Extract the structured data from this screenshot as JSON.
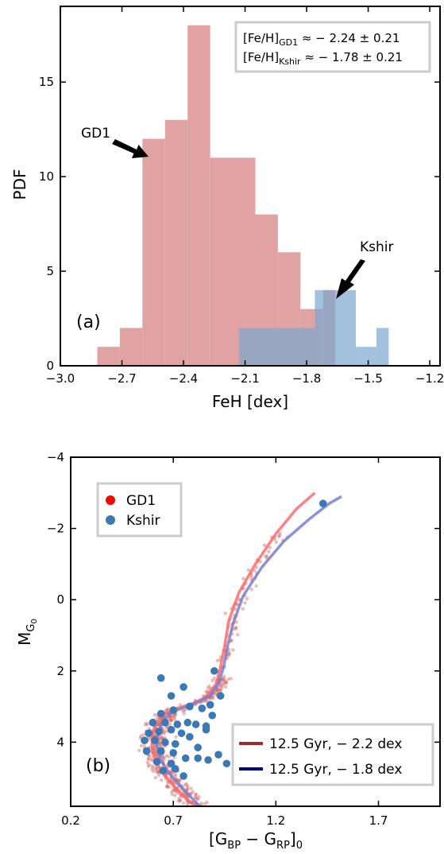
{
  "chart_data": [
    {
      "type": "bar",
      "panel_label": "(a)",
      "xlabel": "FeH [dex]",
      "ylabel": "PDF",
      "xlim": [
        -3.0,
        -1.15
      ],
      "ylim": [
        0,
        19
      ],
      "xticks": [
        -3.0,
        -2.7,
        -2.4,
        -2.1,
        -1.8,
        -1.5,
        -1.2
      ],
      "xtick_labels": [
        "−3.0",
        "−2.7",
        "−2.4",
        "−2.1",
        "−1.8",
        "−1.5",
        "−1.2"
      ],
      "yticks": [
        0,
        5,
        10,
        15
      ],
      "ytick_labels": [
        "0",
        "5",
        "10",
        "15"
      ],
      "series": [
        {
          "name": "GD1",
          "color": "#e0a2a2",
          "bins": [
            {
              "x0": -2.82,
              "x1": -2.71,
              "v": 1
            },
            {
              "x0": -2.71,
              "x1": -2.6,
              "v": 2
            },
            {
              "x0": -2.6,
              "x1": -2.49,
              "v": 12
            },
            {
              "x0": -2.49,
              "x1": -2.38,
              "v": 13
            },
            {
              "x0": -2.38,
              "x1": -2.27,
              "v": 18
            },
            {
              "x0": -2.27,
              "x1": -2.16,
              "v": 11
            },
            {
              "x0": -2.16,
              "x1": -2.05,
              "v": 11
            },
            {
              "x0": -2.05,
              "x1": -1.94,
              "v": 8
            },
            {
              "x0": -1.94,
              "x1": -1.83,
              "v": 6
            },
            {
              "x0": -1.83,
              "x1": -1.72,
              "v": 3
            },
            {
              "x0": -1.72,
              "x1": -1.66,
              "v": 4
            }
          ]
        },
        {
          "name": "Kshir",
          "color": "#7ea9d0",
          "bins": [
            {
              "x0": -2.13,
              "x1": -1.88,
              "v": 2
            },
            {
              "x0": -1.88,
              "x1": -1.76,
              "v": 2
            },
            {
              "x0": -1.76,
              "x1": -1.66,
              "v": 4
            },
            {
              "x0": -1.66,
              "x1": -1.56,
              "v": 4
            },
            {
              "x0": -1.56,
              "x1": -1.51,
              "v": 1
            },
            {
              "x0": -1.51,
              "x1": -1.46,
              "v": 1
            },
            {
              "x0": -1.46,
              "x1": -1.4,
              "v": 2
            }
          ]
        }
      ],
      "annotations": [
        {
          "text": "GD1",
          "target_x": -2.52,
          "target_y": 11.2
        },
        {
          "text": "Kshir",
          "target_x": -1.63,
          "target_y": 3.5
        }
      ],
      "textbox": {
        "line1_main": "[Fe/H]",
        "line1_sub": "GD1",
        "line1_value": " ≈ − 2.24 ± 0.21",
        "line2_main": "[Fe/H]",
        "line2_sub": "Kshir",
        "line2_value": " ≈ − 1.78 ± 0.21"
      }
    },
    {
      "type": "scatter",
      "panel_label": "(b)",
      "xlabel": "[G_BP − G_RP]_0",
      "ylabel": "M_G0",
      "xlim": [
        0.2,
        2.0
      ],
      "ylim": [
        5.8,
        -4.0
      ],
      "y_inverted": true,
      "xticks": [
        0.2,
        0.7,
        1.2,
        1.7
      ],
      "xtick_labels": [
        "0.2",
        "0.7",
        "1.2",
        "1.7"
      ],
      "yticks": [
        -4,
        -2,
        0,
        2,
        4
      ],
      "ytick_labels": [
        "−4",
        "−2",
        "0",
        "2",
        "4"
      ],
      "legend_scatter": {
        "location": "upper left",
        "entries": [
          {
            "name": "GD1",
            "color": "#ff0000"
          },
          {
            "name": "Kshir",
            "color": "#3c78b4"
          }
        ]
      },
      "legend_lines": {
        "location": "lower right",
        "entries": [
          {
            "name": "12.5 Gyr,  − 2.2 dex",
            "color": "#a32a2a"
          },
          {
            "name": "12.5 Gyr,  − 1.8 dex",
            "color": "#00008b"
          }
        ]
      },
      "kshir_points": [
        [
          0.64,
          2.2
        ],
        [
          0.69,
          2.7
        ],
        [
          0.75,
          2.45
        ],
        [
          0.9,
          2.0
        ],
        [
          0.93,
          2.7
        ],
        [
          0.88,
          2.95
        ],
        [
          0.64,
          3.2
        ],
        [
          0.7,
          3.1
        ],
        [
          0.78,
          3.0
        ],
        [
          0.84,
          3.05
        ],
        [
          0.89,
          3.25
        ],
        [
          0.6,
          3.45
        ],
        [
          0.66,
          3.45
        ],
        [
          0.72,
          3.5
        ],
        [
          0.77,
          3.45
        ],
        [
          0.81,
          3.5
        ],
        [
          0.86,
          3.55
        ],
        [
          0.58,
          3.75
        ],
        [
          0.63,
          3.7
        ],
        [
          0.69,
          3.65
        ],
        [
          0.74,
          3.75
        ],
        [
          0.78,
          3.85
        ],
        [
          0.86,
          3.65
        ],
        [
          0.61,
          3.95
        ],
        [
          0.66,
          4.0
        ],
        [
          0.71,
          4.05
        ],
        [
          0.82,
          4.15
        ],
        [
          0.56,
          3.95
        ],
        [
          0.57,
          4.25
        ],
        [
          0.64,
          4.25
        ],
        [
          0.7,
          4.3
        ],
        [
          0.76,
          4.45
        ],
        [
          0.62,
          4.55
        ],
        [
          0.69,
          4.6
        ],
        [
          0.82,
          4.45
        ],
        [
          0.87,
          4.5
        ],
        [
          0.92,
          4.35
        ],
        [
          0.96,
          4.6
        ],
        [
          0.65,
          4.8
        ],
        [
          0.71,
          4.75
        ],
        [
          0.75,
          4.95
        ],
        [
          1.43,
          -2.7
        ]
      ],
      "isochrones": [
        {
          "name": "12.5 Gyr,  − 2.2 dex",
          "color": "#ff6b6b",
          "x": [
            0.805,
            0.74,
            0.69,
            0.64,
            0.61,
            0.595,
            0.6,
            0.62,
            0.66,
            0.72,
            0.8,
            0.87,
            0.91,
            0.93,
            0.95,
            0.97,
            1.02,
            1.1,
            1.2,
            1.3,
            1.39
          ],
          "y": [
            5.8,
            5.45,
            5.15,
            4.8,
            4.45,
            4.1,
            3.75,
            3.45,
            3.2,
            3.05,
            2.9,
            2.7,
            2.35,
            1.9,
            1.3,
            0.6,
            -0.2,
            -1.0,
            -1.85,
            -2.55,
            -3.0
          ]
        },
        {
          "name": "12.5 Gyr,  − 1.8 dex",
          "color": "#7a7fcf",
          "x": [
            0.83,
            0.77,
            0.72,
            0.67,
            0.635,
            0.62,
            0.625,
            0.645,
            0.68,
            0.74,
            0.81,
            0.88,
            0.92,
            0.945,
            0.965,
            0.99,
            1.04,
            1.13,
            1.24,
            1.36,
            1.46,
            1.52
          ],
          "y": [
            5.8,
            5.45,
            5.15,
            4.8,
            4.45,
            4.1,
            3.75,
            3.45,
            3.2,
            3.05,
            2.9,
            2.7,
            2.35,
            1.9,
            1.3,
            0.7,
            -0.1,
            -0.9,
            -1.65,
            -2.25,
            -2.7,
            -2.9
          ]
        }
      ]
    }
  ]
}
